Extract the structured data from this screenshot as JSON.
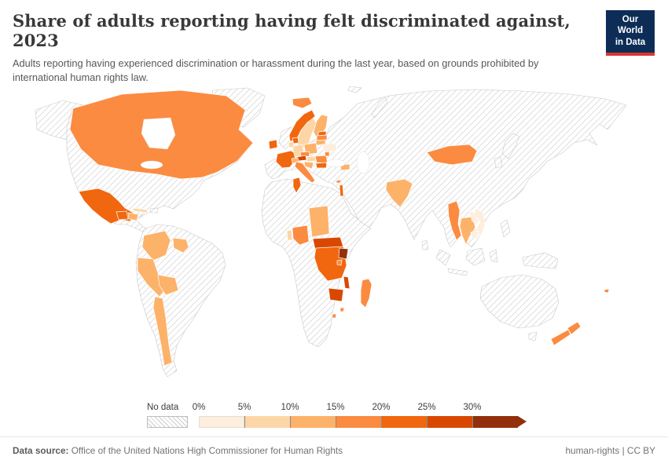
{
  "header": {
    "title": "Share of adults reporting having felt discriminated against, 2023",
    "subtitle": "Adults reporting having experienced discrimination or harassment during the last year, based on grounds prohibited by international human rights law."
  },
  "logo": {
    "line1": "Our World",
    "line2": "in Data",
    "bg_color": "#0d2d57",
    "accent_color": "#d7382e",
    "text_color": "#ffffff"
  },
  "chart_data": {
    "type": "choropleth-map",
    "title": "Share of adults reporting having felt discriminated against, 2023",
    "unit": "%",
    "legend": {
      "no_data_label": "No data",
      "tick_labels": [
        "0%",
        "5%",
        "10%",
        "15%",
        "20%",
        "25%",
        "30%"
      ],
      "bins": [
        {
          "range": "0-5%",
          "color": "#fdeedd"
        },
        {
          "range": "5-10%",
          "color": "#fdd6a7"
        },
        {
          "range": "10-15%",
          "color": "#fdb269"
        },
        {
          "range": "15-20%",
          "color": "#fb8b41"
        },
        {
          "range": "20-25%",
          "color": "#f0670f"
        },
        {
          "range": "25-30%",
          "color": "#d94801"
        },
        {
          "range": "30%+",
          "color": "#91300a"
        }
      ]
    },
    "countries": {
      "canada": 3,
      "mexico": 4,
      "guatemala": 4,
      "honduras": 2,
      "cuba": 1,
      "colombia": 2,
      "guyana-suriname": 2,
      "peru": 2,
      "bolivia": 2,
      "chile": 2,
      "iceland": 3,
      "ireland": 4,
      "norway": 4,
      "sweden": 1,
      "finland": 2,
      "denmark": 4,
      "estonia": 4,
      "latvia": 3,
      "lithuania": 2,
      "belarus": 0,
      "germany": 1,
      "netherlands": 1,
      "poland": 2,
      "france": 4,
      "portugal": 3,
      "switzerland": 2,
      "czechia": 3,
      "austria": 5,
      "italy": 3,
      "hungary": 1,
      "croatia-serbia": 2,
      "romania": 3,
      "bulgaria": 4,
      "moldova": 3,
      "georgia-armenia": 2,
      "cyprus": 3,
      "israel": 4,
      "tunisia": 4,
      "chad": 2,
      "nigeria": 3,
      "benin": 1,
      "central-african-republic": 5,
      "dr-congo": 4,
      "uganda": 6,
      "rwanda-burundi": 3,
      "malawi": 5,
      "zimbabwe": 5,
      "madagascar": 3,
      "eswatini": 3,
      "lesotho": 3,
      "mongolia": 3,
      "pakistan": 2,
      "myanmar": 3,
      "thailand": 2,
      "laos": 0,
      "vietnam": 0,
      "cambodia": 0,
      "new-zealand-north": 3,
      "new-zealand-south": 3,
      "fiji": 3,
      "alaska": null,
      "greenland": null,
      "north-america-no-data": null,
      "hispaniola": null,
      "jamaica": null,
      "south-america-no-data": null,
      "eurasia-no-data": null,
      "united-kingdom": null,
      "svalbard": null,
      "novaya-zemlya": null,
      "africa-no-data": null,
      "japan": null,
      "south-korea": null,
      "philippines": null,
      "sri-lanka": null,
      "sumatra": null,
      "java": null,
      "borneo": null,
      "sulawesi": null,
      "new-guinea": null,
      "australia": null,
      "tasmania": null
    }
  },
  "footer": {
    "source_label": "Data source:",
    "source_text": " Office of the United Nations High Commissioner for Human Rights",
    "right_text": "human-rights | CC BY"
  }
}
